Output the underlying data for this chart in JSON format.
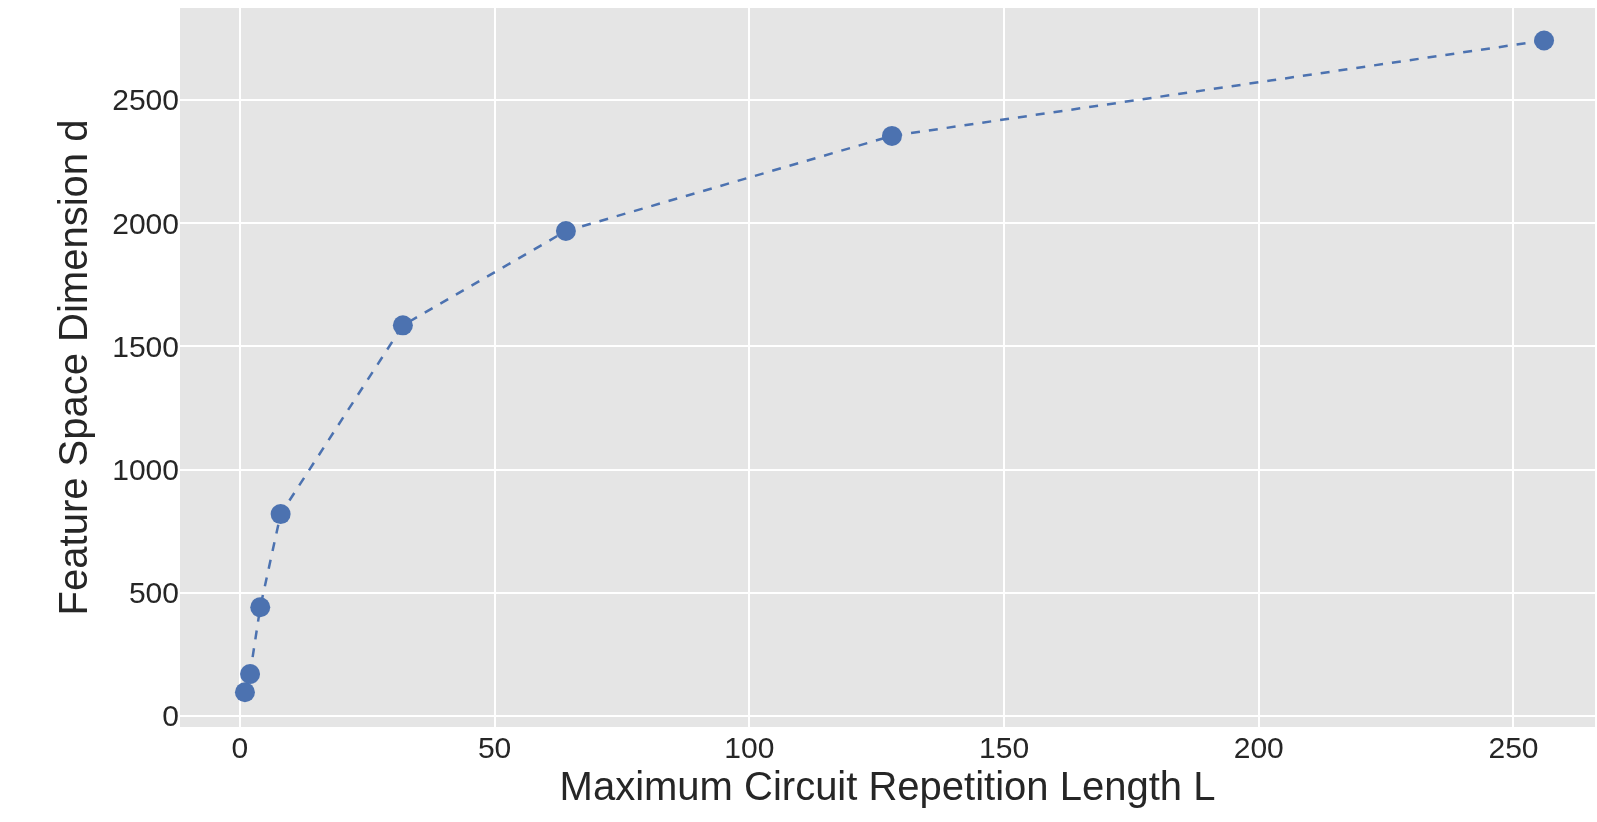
{
  "chart_data": {
    "type": "line",
    "xlabel": "Maximum Circuit Repetition Length L",
    "ylabel": "Feature Space Dimension d",
    "x": [
      1,
      2,
      4,
      8,
      32,
      64,
      128,
      256
    ],
    "series": [
      {
        "color": "#4c72b0",
        "values": [
          96,
          170,
          441,
          819,
          1585,
          1968,
          2354,
          2741
        ]
      }
    ],
    "xlim": [
      -11.75,
      266
    ],
    "xticks": [
      0,
      50,
      100,
      150,
      200,
      250
    ],
    "ylim": [
      -45,
      2873
    ],
    "yticks": [
      0,
      500,
      1000,
      1500,
      2000,
      2500
    ],
    "grid": true,
    "marker": "circle",
    "line_style": "dashed"
  }
}
